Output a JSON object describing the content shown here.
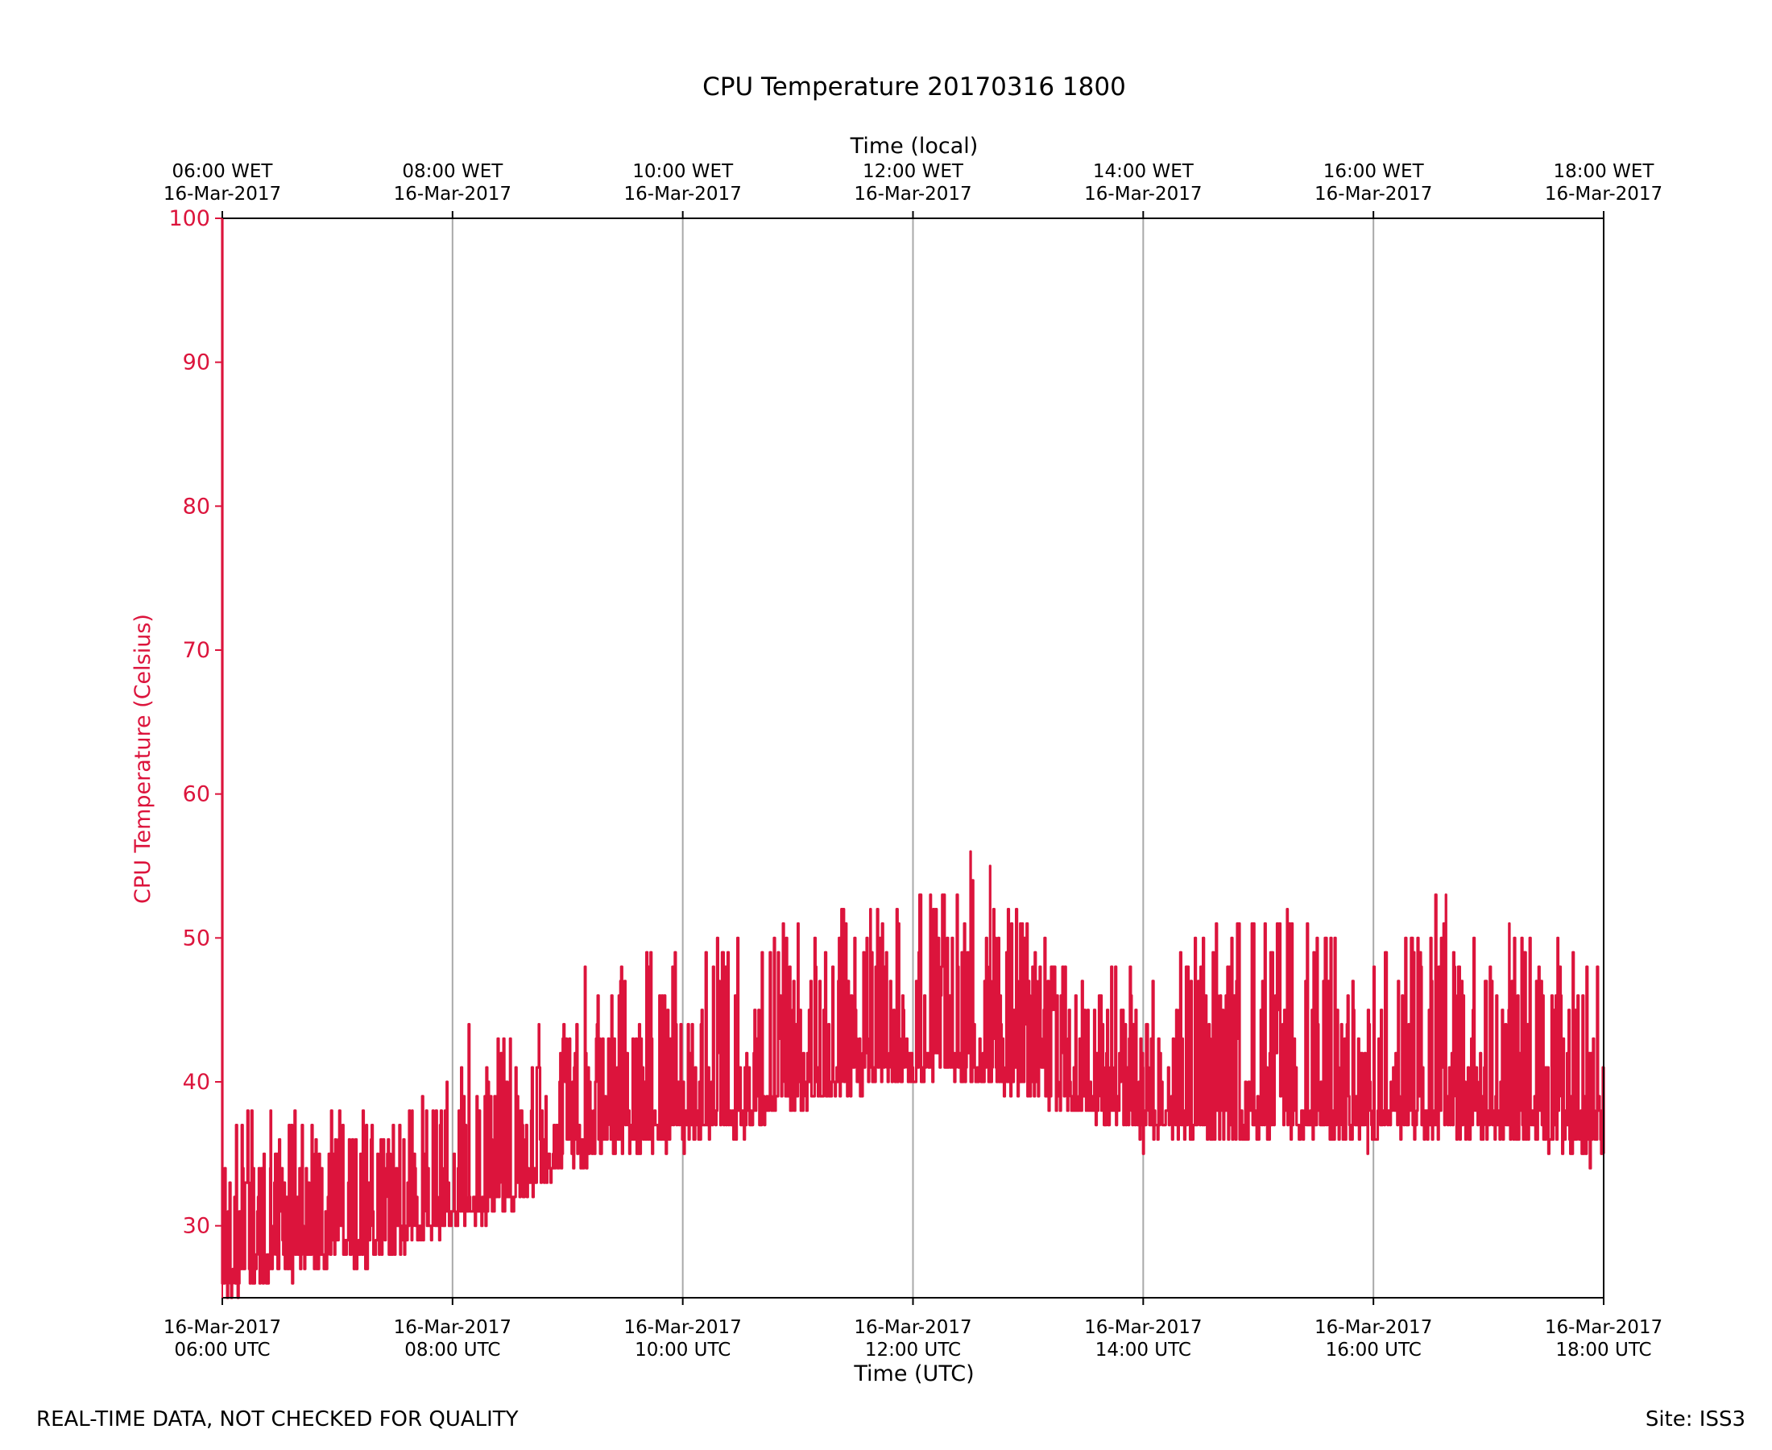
{
  "chart_data": {
    "type": "line",
    "title": "CPU Temperature 20170316 1800",
    "xlabel": "Time (UTC)",
    "x2label": "Time (local)",
    "ylabel": "CPU Temperature (Celsius)",
    "ylim": [
      25,
      100
    ],
    "yticks": [
      30,
      40,
      50,
      60,
      70,
      80,
      90,
      100
    ],
    "xlim": [
      6,
      18
    ],
    "xticks": [
      6,
      8,
      10,
      12,
      14,
      16,
      18
    ],
    "xtick_labels": [
      [
        "16-Mar-2017",
        "06:00 UTC"
      ],
      [
        "16-Mar-2017",
        "08:00 UTC"
      ],
      [
        "16-Mar-2017",
        "10:00 UTC"
      ],
      [
        "16-Mar-2017",
        "12:00 UTC"
      ],
      [
        "16-Mar-2017",
        "14:00 UTC"
      ],
      [
        "16-Mar-2017",
        "16:00 UTC"
      ],
      [
        "16-Mar-2017",
        "18:00 UTC"
      ]
    ],
    "x2tick_labels": [
      [
        "06:00 WET",
        "16-Mar-2017"
      ],
      [
        "08:00 WET",
        "16-Mar-2017"
      ],
      [
        "10:00 WET",
        "16-Mar-2017"
      ],
      [
        "12:00 WET",
        "16-Mar-2017"
      ],
      [
        "14:00 WET",
        "16-Mar-2017"
      ],
      [
        "16:00 WET",
        "16-Mar-2017"
      ],
      [
        "18:00 WET",
        "16-Mar-2017"
      ]
    ],
    "grid": "vertical",
    "series": [
      {
        "name": "CPU Temperature",
        "color": "#dc143c",
        "noise_amplitude": 5,
        "envelope": [
          {
            "time": 6.0,
            "base": 26,
            "spike_max": 38
          },
          {
            "time": 7.5,
            "base": 29,
            "spike_max": 38
          },
          {
            "time": 8.5,
            "base": 32,
            "spike_max": 44
          },
          {
            "time": 9.0,
            "base": 35,
            "spike_max": 44
          },
          {
            "time": 9.5,
            "base": 36,
            "spike_max": 49
          },
          {
            "time": 10.5,
            "base": 37,
            "spike_max": 50
          },
          {
            "time": 11.0,
            "base": 39,
            "spike_max": 51
          },
          {
            "time": 12.0,
            "base": 41,
            "spike_max": 53
          },
          {
            "time": 12.5,
            "base": 41,
            "spike_max": 56
          },
          {
            "time": 13.0,
            "base": 40,
            "spike_max": 51
          },
          {
            "time": 13.5,
            "base": 38,
            "spike_max": 48
          },
          {
            "time": 14.0,
            "base": 37,
            "spike_max": 49
          },
          {
            "time": 15.0,
            "base": 37,
            "spike_max": 52
          },
          {
            "time": 16.0,
            "base": 37,
            "spike_max": 49
          },
          {
            "time": 16.5,
            "base": 37,
            "spike_max": 53
          },
          {
            "time": 17.0,
            "base": 37,
            "spike_max": 51
          },
          {
            "time": 18.0,
            "base": 36,
            "spike_max": 50
          }
        ],
        "values": [
          {
            "time": 6.0,
            "value": 100
          },
          {
            "time": 6.0,
            "value": 26
          },
          {
            "time": 6.42,
            "value": 38
          },
          {
            "time": 6.6,
            "value": 37
          },
          {
            "time": 7.25,
            "value": 37
          },
          {
            "time": 7.65,
            "value": 38
          },
          {
            "time": 7.95,
            "value": 40
          },
          {
            "time": 8.14,
            "value": 44
          },
          {
            "time": 8.5,
            "value": 43
          },
          {
            "time": 8.75,
            "value": 44
          },
          {
            "time": 9.15,
            "value": 48
          },
          {
            "time": 9.72,
            "value": 49
          },
          {
            "time": 10.3,
            "value": 50
          },
          {
            "time": 11.0,
            "value": 51
          },
          {
            "time": 11.63,
            "value": 52
          },
          {
            "time": 12.15,
            "value": 53
          },
          {
            "time": 12.5,
            "value": 56
          },
          {
            "time": 12.67,
            "value": 55
          },
          {
            "time": 12.95,
            "value": 51
          },
          {
            "time": 14.0,
            "value": 35
          },
          {
            "time": 15.25,
            "value": 52
          },
          {
            "time": 15.95,
            "value": 35
          },
          {
            "time": 16.63,
            "value": 53
          },
          {
            "time": 17.18,
            "value": 51
          },
          {
            "time": 17.6,
            "value": 50
          },
          {
            "time": 17.88,
            "value": 34
          },
          {
            "time": 18.0,
            "value": 35
          }
        ]
      }
    ]
  },
  "footer": {
    "left_note": "REAL-TIME DATA, NOT CHECKED FOR QUALITY",
    "site": "Site: ISS3"
  }
}
